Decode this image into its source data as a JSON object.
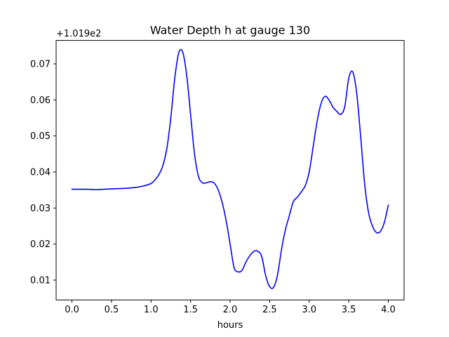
{
  "chart_data": {
    "type": "line",
    "title": "Water Depth h at gauge 130",
    "xlabel": "hours",
    "ylabel": "",
    "y_offset_label": "+1.019e2",
    "xlim": [
      -0.2,
      4.2
    ],
    "ylim": [
      0.0045,
      0.0765
    ],
    "x_ticks": [
      0.0,
      0.5,
      1.0,
      1.5,
      2.0,
      2.5,
      3.0,
      3.5,
      4.0
    ],
    "x_tick_labels": [
      "0.0",
      "0.5",
      "1.0",
      "1.5",
      "2.0",
      "2.5",
      "3.0",
      "3.5",
      "4.0"
    ],
    "y_ticks": [
      0.01,
      0.02,
      0.03,
      0.04,
      0.05,
      0.06,
      0.07
    ],
    "y_tick_labels": [
      "0.01",
      "0.02",
      "0.03",
      "0.04",
      "0.05",
      "0.06",
      "0.07"
    ],
    "grid": false,
    "series": [
      {
        "color": "#0000ff",
        "x": [
          0.0,
          0.1,
          0.2,
          0.3,
          0.4,
          0.5,
          0.6,
          0.7,
          0.8,
          0.9,
          1.0,
          1.05,
          1.1,
          1.15,
          1.2,
          1.25,
          1.3,
          1.35,
          1.4,
          1.45,
          1.5,
          1.55,
          1.6,
          1.65,
          1.7,
          1.75,
          1.8,
          1.85,
          1.9,
          1.95,
          2.0,
          2.05,
          2.1,
          2.15,
          2.2,
          2.25,
          2.3,
          2.35,
          2.4,
          2.45,
          2.5,
          2.55,
          2.6,
          2.65,
          2.7,
          2.75,
          2.8,
          2.85,
          2.9,
          2.95,
          3.0,
          3.05,
          3.1,
          3.15,
          3.2,
          3.25,
          3.3,
          3.35,
          3.4,
          3.45,
          3.5,
          3.55,
          3.6,
          3.65,
          3.7,
          3.75,
          3.8,
          3.85,
          3.9,
          3.95,
          4.0
        ],
        "y": [
          0.0352,
          0.0352,
          0.0352,
          0.0351,
          0.0352,
          0.0353,
          0.0354,
          0.0355,
          0.0357,
          0.0361,
          0.0368,
          0.0378,
          0.0393,
          0.0418,
          0.0465,
          0.055,
          0.066,
          0.073,
          0.0733,
          0.067,
          0.056,
          0.045,
          0.0388,
          0.037,
          0.037,
          0.0373,
          0.0369,
          0.035,
          0.0315,
          0.0265,
          0.02,
          0.0135,
          0.0123,
          0.0127,
          0.015,
          0.0168,
          0.018,
          0.018,
          0.0165,
          0.0112,
          0.0082,
          0.008,
          0.0115,
          0.0185,
          0.024,
          0.028,
          0.0318,
          0.033,
          0.0345,
          0.0362,
          0.04,
          0.047,
          0.054,
          0.059,
          0.061,
          0.06,
          0.058,
          0.0568,
          0.056,
          0.0582,
          0.066,
          0.0678,
          0.062,
          0.05,
          0.037,
          0.0288,
          0.025,
          0.0232,
          0.0235,
          0.026,
          0.0308
        ]
      }
    ]
  }
}
